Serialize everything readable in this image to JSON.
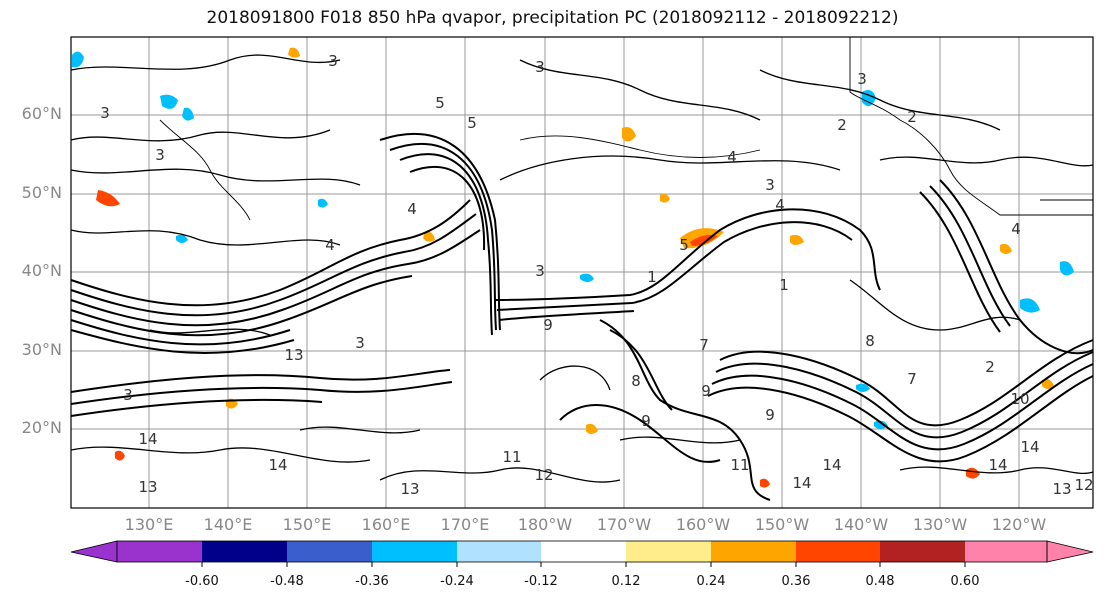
{
  "title": "2018091800 F018 850 hPa qvapor, precipitation PC (2018092112 - 2018092212)",
  "lat_labels": [
    "60°N",
    "50°N",
    "40°N",
    "30°N",
    "20°N"
  ],
  "lon_labels": [
    "130°E",
    "140°E",
    "150°E",
    "160°E",
    "170°E",
    "180°W",
    "170°W",
    "160°W",
    "150°W",
    "140°W",
    "130°W",
    "120°W"
  ],
  "colorbar": {
    "colors": [
      "#9a32cd",
      "#00008b",
      "#3a5fcd",
      "#00bfff",
      "#b0e2ff",
      "#ffffff",
      "#ffec8b",
      "#ffa500",
      "#ff4500",
      "#b22222",
      "#ff82ab"
    ],
    "tick_labels": [
      "-0.60",
      "-0.48",
      "-0.36",
      "-0.24",
      "-0.12",
      "0.12",
      "0.24",
      "0.36",
      "0.48",
      "0.60"
    ]
  },
  "contour_labels": [
    "3",
    "3",
    "3",
    "3",
    "5",
    "5",
    "4",
    "4",
    "3",
    "4",
    "2",
    "3",
    "4",
    "3",
    "5",
    "4",
    "9",
    "13",
    "3",
    "7",
    "9",
    "8",
    "2",
    "10",
    "9",
    "7",
    "14",
    "14",
    "11",
    "12",
    "11",
    "14",
    "14",
    "14",
    "13",
    "13",
    "13",
    "12",
    "14",
    "8",
    "9",
    "3",
    "2",
    "1",
    "1"
  ]
}
